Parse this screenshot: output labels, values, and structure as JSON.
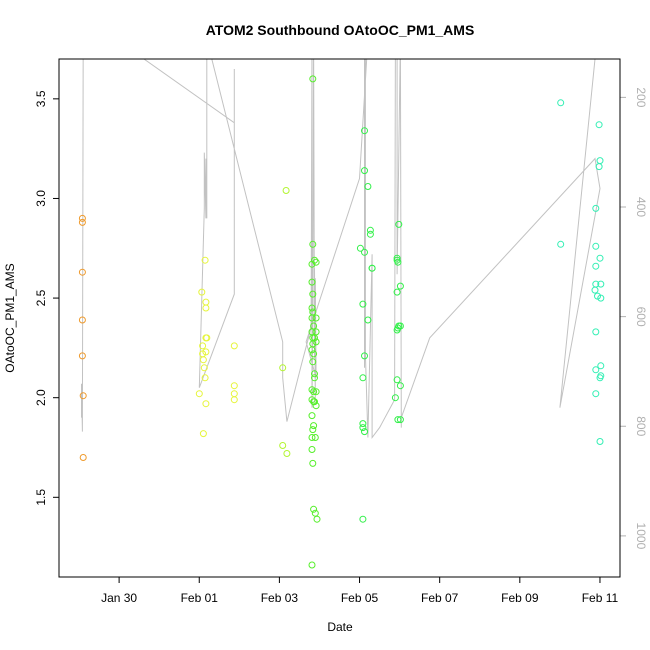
{
  "chart_data": {
    "type": "scatter",
    "title": "ATOM2 Southbound OAtoOC_PM1_AMS",
    "xlabel": "Date",
    "ylabel": "OAtoOC_PM1_AMS",
    "x_axis_type": "date",
    "xlim": [
      "2017-01-28T12:00",
      "2017-02-11T12:00"
    ],
    "ylim": [
      1.1,
      3.7
    ],
    "y_ticks": [
      "1.5",
      "2.0",
      "2.5",
      "3.0",
      "3.5"
    ],
    "x_ticks": [
      {
        "label": "Jan 30",
        "date": "2017-01-30T00:00"
      },
      {
        "label": "Feb 01",
        "date": "2017-02-01T00:00"
      },
      {
        "label": "Feb 03",
        "date": "2017-02-03T00:00"
      },
      {
        "label": "Feb 05",
        "date": "2017-02-05T00:00"
      },
      {
        "label": "Feb 07",
        "date": "2017-02-07T00:00"
      },
      {
        "label": "Feb 09",
        "date": "2017-02-09T00:00"
      },
      {
        "label": "Feb 11",
        "date": "2017-02-11T00:00"
      }
    ],
    "right_axis": {
      "ylim": [
        1075,
        130
      ],
      "ticks": [
        "200",
        "400",
        "600",
        "800",
        "1000"
      ],
      "color": "#b0b0b0"
    },
    "grid": false,
    "legend": "none",
    "point_colors": {
      "orange": "#ef9a2c",
      "yellow": "#e6f53c",
      "yellowgreen": "#b3f531",
      "green": "#55ef2a",
      "lime": "#32f04a",
      "teal": "#33efb4"
    },
    "line_color": "#c2c2c2",
    "series": [
      {
        "color": "orange",
        "points": [
          [
            "2017-01-29T02:00",
            2.9
          ],
          [
            "2017-01-29T02:00",
            2.88
          ],
          [
            "2017-01-29T02:00",
            2.63
          ],
          [
            "2017-01-29T02:00",
            2.39
          ],
          [
            "2017-01-29T02:00",
            2.21
          ],
          [
            "2017-01-29T02:30",
            2.01
          ],
          [
            "2017-01-29T02:30",
            1.7
          ]
        ]
      },
      {
        "color": "yellow",
        "points": [
          [
            "2017-02-01T00:00",
            2.02
          ],
          [
            "2017-02-01T01:30",
            2.53
          ],
          [
            "2017-02-01T02:00",
            2.26
          ],
          [
            "2017-02-01T02:00",
            2.22
          ],
          [
            "2017-02-01T02:30",
            2.19
          ],
          [
            "2017-02-01T03:00",
            2.15
          ],
          [
            "2017-02-01T03:30",
            2.1
          ],
          [
            "2017-02-01T02:30",
            1.82
          ],
          [
            "2017-02-01T03:30",
            2.69
          ],
          [
            "2017-02-01T04:00",
            2.48
          ],
          [
            "2017-02-01T04:00",
            2.45
          ],
          [
            "2017-02-01T04:00",
            2.3
          ],
          [
            "2017-02-01T04:30",
            2.3
          ],
          [
            "2017-02-01T04:00",
            2.23
          ],
          [
            "2017-02-01T04:00",
            1.97
          ],
          [
            "2017-02-01T21:00",
            2.26
          ],
          [
            "2017-02-01T21:00",
            2.06
          ],
          [
            "2017-02-01T21:00",
            2.02
          ],
          [
            "2017-02-01T21:00",
            1.99
          ]
        ]
      },
      {
        "color": "yellowgreen",
        "points": [
          [
            "2017-02-03T02:00",
            2.15
          ],
          [
            "2017-02-03T04:00",
            3.04
          ],
          [
            "2017-02-03T02:00",
            1.76
          ],
          [
            "2017-02-03T04:30",
            1.72
          ]
        ]
      },
      {
        "color": "green",
        "points": [
          [
            "2017-02-03T20:00",
            3.6
          ],
          [
            "2017-02-03T20:00",
            2.77
          ],
          [
            "2017-02-03T19:30",
            2.67
          ],
          [
            "2017-02-03T21:00",
            2.69
          ],
          [
            "2017-02-03T22:00",
            2.68
          ],
          [
            "2017-02-03T19:30",
            2.58
          ],
          [
            "2017-02-03T20:00",
            2.52
          ],
          [
            "2017-02-03T19:30",
            2.45
          ],
          [
            "2017-02-03T20:00",
            2.43
          ],
          [
            "2017-02-03T19:30",
            2.4
          ],
          [
            "2017-02-03T20:30",
            2.36
          ],
          [
            "2017-02-03T19:30",
            2.33
          ],
          [
            "2017-02-03T20:00",
            2.3
          ],
          [
            "2017-02-03T21:00",
            2.3
          ],
          [
            "2017-02-03T20:00",
            2.27
          ],
          [
            "2017-02-03T19:30",
            2.24
          ],
          [
            "2017-02-03T20:30",
            2.22
          ],
          [
            "2017-02-03T22:00",
            2.4
          ],
          [
            "2017-02-03T22:00",
            2.33
          ],
          [
            "2017-02-03T22:00",
            2.28
          ],
          [
            "2017-02-03T20:00",
            2.18
          ],
          [
            "2017-02-03T21:00",
            2.12
          ],
          [
            "2017-02-03T21:00",
            2.1
          ],
          [
            "2017-02-03T19:30",
            2.04
          ],
          [
            "2017-02-03T20:30",
            2.03
          ],
          [
            "2017-02-03T22:00",
            2.03
          ],
          [
            "2017-02-03T19:30",
            1.99
          ],
          [
            "2017-02-03T20:30",
            1.98
          ],
          [
            "2017-02-03T21:00",
            1.98
          ],
          [
            "2017-02-03T22:00",
            1.96
          ],
          [
            "2017-02-03T19:30",
            1.91
          ],
          [
            "2017-02-03T20:30",
            1.86
          ],
          [
            "2017-02-03T20:00",
            1.84
          ],
          [
            "2017-02-03T19:30",
            1.8
          ],
          [
            "2017-02-03T21:30",
            1.8
          ],
          [
            "2017-02-03T19:30",
            1.74
          ],
          [
            "2017-02-03T20:00",
            1.67
          ],
          [
            "2017-02-03T20:30",
            1.44
          ],
          [
            "2017-02-03T21:30",
            1.42
          ],
          [
            "2017-02-03T22:30",
            1.39
          ],
          [
            "2017-02-03T19:30",
            1.16
          ]
        ]
      },
      {
        "color": "lime",
        "points": [
          [
            "2017-02-05T03:00",
            3.34
          ],
          [
            "2017-02-05T03:00",
            3.14
          ],
          [
            "2017-02-05T05:00",
            3.06
          ],
          [
            "2017-02-05T06:30",
            2.84
          ],
          [
            "2017-02-05T06:30",
            2.82
          ],
          [
            "2017-02-05T00:30",
            2.75
          ],
          [
            "2017-02-05T03:00",
            2.73
          ],
          [
            "2017-02-05T07:30",
            2.65
          ],
          [
            "2017-02-05T07:30",
            2.65
          ],
          [
            "2017-02-05T02:00",
            2.47
          ],
          [
            "2017-02-05T05:00",
            2.39
          ],
          [
            "2017-02-05T03:00",
            2.21
          ],
          [
            "2017-02-05T02:00",
            2.1
          ],
          [
            "2017-02-05T02:00",
            1.87
          ],
          [
            "2017-02-05T02:00",
            1.85
          ],
          [
            "2017-02-05T03:00",
            1.83
          ],
          [
            "2017-02-05T02:00",
            1.39
          ],
          [
            "2017-02-05T23:30",
            2.87
          ],
          [
            "2017-02-05T22:30",
            2.7
          ],
          [
            "2017-02-05T22:30",
            2.69
          ],
          [
            "2017-02-05T23:00",
            2.68
          ],
          [
            "2017-02-06T00:30",
            2.56
          ],
          [
            "2017-02-05T22:30",
            2.53
          ],
          [
            "2017-02-05T23:30",
            2.36
          ],
          [
            "2017-02-06T00:30",
            2.36
          ],
          [
            "2017-02-05T23:00",
            2.35
          ],
          [
            "2017-02-05T22:30",
            2.34
          ],
          [
            "2017-02-05T22:30",
            2.09
          ],
          [
            "2017-02-06T00:30",
            2.06
          ],
          [
            "2017-02-05T21:30",
            2.0
          ],
          [
            "2017-02-05T23:00",
            1.89
          ],
          [
            "2017-02-06T00:30",
            1.89
          ]
        ]
      },
      {
        "color": "teal",
        "points": [
          [
            "2017-02-10T00:30",
            3.48
          ],
          [
            "2017-02-10T00:30",
            2.77
          ],
          [
            "2017-02-10T21:30",
            2.95
          ],
          [
            "2017-02-10T21:30",
            2.76
          ],
          [
            "2017-02-10T21:30",
            2.66
          ],
          [
            "2017-02-10T21:30",
            2.57
          ],
          [
            "2017-02-10T21:00",
            2.54
          ],
          [
            "2017-02-10T22:30",
            2.51
          ],
          [
            "2017-02-10T21:30",
            2.33
          ],
          [
            "2017-02-10T21:30",
            2.14
          ],
          [
            "2017-02-10T21:30",
            2.02
          ],
          [
            "2017-02-10T23:30",
            3.37
          ],
          [
            "2017-02-11T00:00",
            3.19
          ],
          [
            "2017-02-10T23:30",
            3.16
          ],
          [
            "2017-02-11T00:00",
            2.7
          ],
          [
            "2017-02-11T00:30",
            2.57
          ],
          [
            "2017-02-11T00:30",
            2.5
          ],
          [
            "2017-02-11T00:30",
            2.16
          ],
          [
            "2017-02-11T00:30",
            2.11
          ],
          [
            "2017-02-11T00:00",
            2.1
          ],
          [
            "2017-02-11T00:00",
            1.78
          ]
        ]
      }
    ],
    "track_line": [
      [
        "2017-01-29T01:30",
        1.9
      ],
      [
        "2017-01-29T01:30",
        2.07
      ],
      [
        "2017-01-29T02:00",
        1.83
      ],
      [
        "2017-01-29T02:30",
        3.8
      ],
      [
        "2017-01-29T22:00",
        3.8
      ],
      [
        "2017-02-01T21:00",
        3.38
      ],
      [
        "2017-02-01T21:00",
        3.65
      ],
      [
        "2017-02-01T21:00",
        2.52
      ],
      [
        "2017-02-01T00:00",
        2.05
      ],
      [
        "2017-02-01T03:00",
        2.95
      ],
      [
        "2017-02-01T03:00",
        3.23
      ],
      [
        "2017-02-01T04:00",
        2.9
      ],
      [
        "2017-02-01T04:00",
        3.2
      ],
      [
        "2017-02-01T04:30",
        2.9
      ],
      [
        "2017-02-01T04:30",
        3.8
      ],
      [
        "2017-02-03T02:00",
        2.28
      ],
      [
        "2017-02-03T02:00",
        2.1
      ],
      [
        "2017-02-03T04:30",
        1.88
      ],
      [
        "2017-02-03T13:00",
        2.16
      ],
      [
        "2017-02-03T19:00",
        2.35
      ],
      [
        "2017-02-03T19:30",
        3.8
      ],
      [
        "2017-02-03T19:30",
        1.95
      ],
      [
        "2017-02-03T20:00",
        2.42
      ],
      [
        "2017-02-03T20:30",
        3.8
      ],
      [
        "2017-02-03T21:00",
        2.2
      ],
      [
        "2017-02-03T21:00",
        2.65
      ],
      [
        "2017-02-03T21:30",
        1.98
      ],
      [
        "2017-02-03T21:30",
        2.6
      ],
      [
        "2017-02-03T22:00",
        2.1
      ],
      [
        "2017-02-03T16:00",
        2.28
      ],
      [
        "2017-02-05T00:00",
        3.1
      ],
      [
        "2017-02-05T05:00",
        3.8
      ],
      [
        "2017-02-05T03:00",
        3.8
      ],
      [
        "2017-02-05T03:00",
        2.15
      ],
      [
        "2017-02-05T03:30",
        3.8
      ],
      [
        "2017-02-05T03:30",
        2.22
      ],
      [
        "2017-02-05T05:00",
        1.8
      ],
      [
        "2017-02-05T07:30",
        2.72
      ],
      [
        "2017-02-05T07:30",
        1.8
      ],
      [
        "2017-02-05T12:00",
        1.85
      ],
      [
        "2017-02-05T21:00",
        1.99
      ],
      [
        "2017-02-05T21:30",
        3.8
      ],
      [
        "2017-02-05T22:30",
        3.8
      ],
      [
        "2017-02-05T22:30",
        2.62
      ],
      [
        "2017-02-06T00:30",
        3.8
      ],
      [
        "2017-02-06T01:00",
        1.85
      ],
      [
        "2017-02-06T01:00",
        1.9
      ],
      [
        "2017-02-06T18:00",
        2.3
      ],
      [
        "2017-02-10T21:00",
        3.2
      ],
      [
        "2017-02-11T00:00",
        3.05
      ],
      [
        "2017-02-10T00:00",
        1.95
      ],
      [
        "2017-02-10T21:00",
        3.7
      ],
      [
        "2017-02-11T00:00",
        3.8
      ]
    ]
  }
}
